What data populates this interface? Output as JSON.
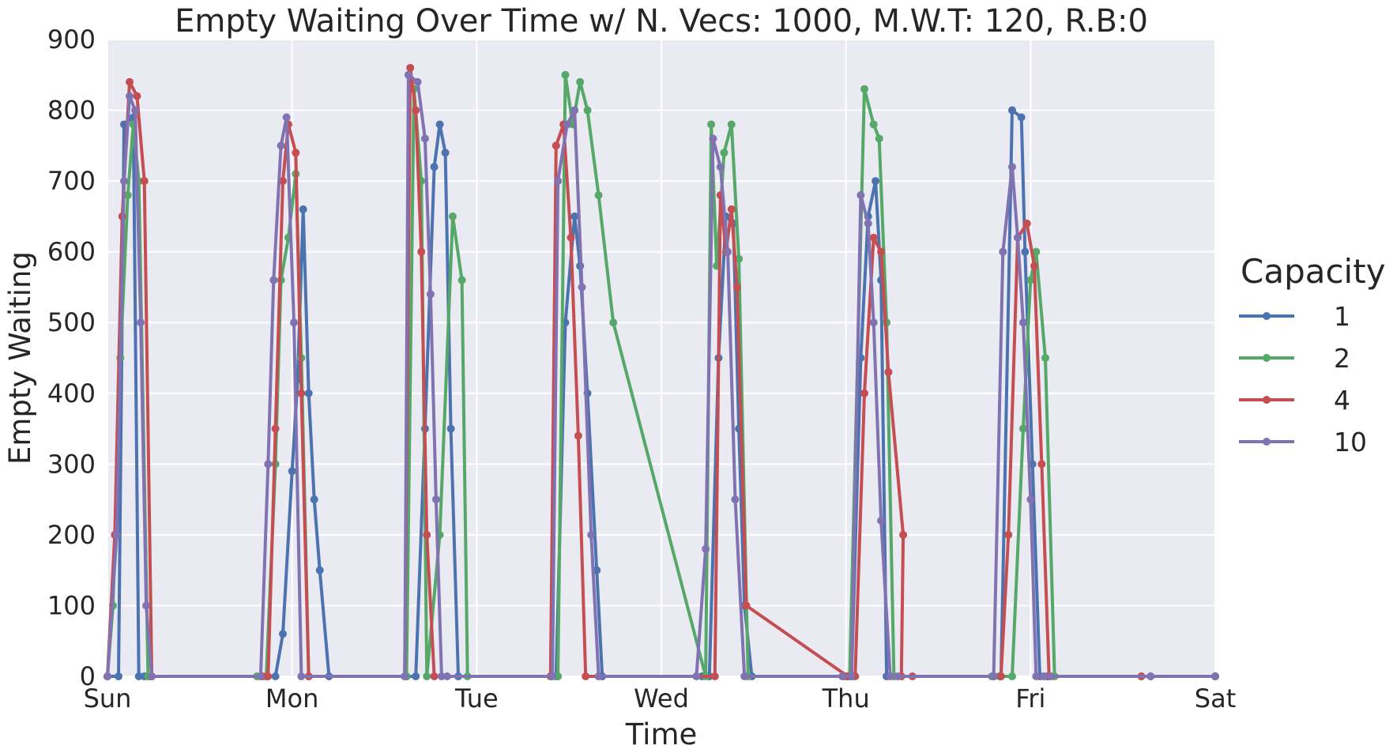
{
  "chart_data": {
    "type": "line",
    "title": "Empty Waiting Over Time w/ N. Vecs: 1000, M.W.T: 120, R.B:0",
    "xlabel": "Time",
    "ylabel": "Empty Waiting",
    "x_ticks": [
      "Sun",
      "Mon",
      "Tue",
      "Wed",
      "Thu",
      "Fri",
      "Sat"
    ],
    "xlim": [
      0,
      6
    ],
    "ylim": [
      0,
      900
    ],
    "y_ticks": [
      0,
      100,
      200,
      300,
      400,
      500,
      600,
      700,
      800,
      900
    ],
    "grid": true,
    "legend": {
      "title": "Capacity",
      "placement": "right"
    },
    "series": [
      {
        "name": "1",
        "color": "#4c72b0",
        "x": [
          0,
          0.06,
          0.09,
          0.14,
          0.17,
          0.2,
          0.23,
          0.86,
          0.91,
          0.95,
          1.0,
          1.03,
          1.06,
          1.09,
          1.12,
          1.15,
          1.2,
          1.62,
          1.67,
          1.72,
          1.77,
          1.8,
          1.83,
          1.86,
          1.9,
          2.4,
          2.43,
          2.48,
          2.53,
          2.56,
          2.6,
          2.65,
          2.68,
          3.22,
          3.26,
          3.31,
          3.35,
          3.39,
          3.42,
          3.45,
          3.49,
          3.99,
          4.03,
          4.08,
          4.12,
          4.16,
          4.19,
          4.22,
          4.8,
          4.84,
          4.9,
          4.95,
          4.97,
          5.01,
          5.05,
          5.09,
          5.65,
          6.0
        ],
        "values": [
          0,
          0,
          780,
          790,
          0,
          0,
          0,
          0,
          0,
          60,
          290,
          420,
          660,
          400,
          250,
          150,
          0,
          0,
          0,
          350,
          720,
          780,
          740,
          350,
          0,
          0,
          0,
          500,
          650,
          580,
          400,
          150,
          0,
          0,
          0,
          450,
          650,
          640,
          350,
          100,
          0,
          0,
          0,
          450,
          650,
          700,
          560,
          0,
          0,
          0,
          800,
          790,
          600,
          300,
          0,
          0,
          0,
          0
        ]
      },
      {
        "name": "2",
        "color": "#55a868",
        "x": [
          0,
          0.03,
          0.07,
          0.11,
          0.14,
          0.17,
          0.22,
          0.81,
          0.86,
          0.91,
          0.94,
          0.98,
          1.02,
          1.05,
          1.09,
          1.62,
          1.66,
          1.7,
          1.73,
          1.8,
          1.87,
          1.92,
          1.95,
          2.44,
          2.48,
          2.52,
          2.56,
          2.6,
          2.66,
          2.74,
          3.24,
          3.27,
          3.3,
          3.34,
          3.38,
          3.42,
          3.47,
          4.0,
          4.02,
          4.1,
          4.15,
          4.18,
          4.22,
          4.26,
          4.79,
          4.83,
          4.9,
          4.96,
          5.0,
          5.03,
          5.08,
          5.13,
          5.6,
          6.0
        ],
        "values": [
          0,
          100,
          450,
          680,
          780,
          700,
          0,
          0,
          0,
          300,
          560,
          620,
          710,
          450,
          0,
          0,
          830,
          700,
          0,
          200,
          650,
          560,
          0,
          0,
          850,
          780,
          840,
          800,
          680,
          500,
          0,
          780,
          580,
          740,
          780,
          590,
          0,
          0,
          0,
          830,
          780,
          760,
          500,
          0,
          0,
          0,
          0,
          350,
          560,
          600,
          450,
          0,
          0,
          0
        ]
      },
      {
        "name": "4",
        "color": "#c44e52",
        "x": [
          0,
          0.04,
          0.08,
          0.12,
          0.16,
          0.2,
          0.24,
          0.84,
          0.87,
          0.91,
          0.95,
          0.98,
          1.02,
          1.05,
          1.09,
          1.61,
          1.64,
          1.67,
          1.7,
          1.73,
          1.77,
          2.4,
          2.43,
          2.47,
          2.51,
          2.55,
          2.59,
          3.29,
          3.32,
          3.35,
          3.38,
          3.41,
          3.46,
          4.01,
          4.05,
          4.1,
          4.15,
          4.19,
          4.23,
          4.31,
          4.3,
          4.36,
          4.8,
          4.84,
          4.88,
          4.93,
          4.98,
          5.02,
          5.06,
          5.1,
          5.6,
          6.0
        ],
        "values": [
          0,
          200,
          650,
          840,
          820,
          700,
          0,
          0,
          0,
          350,
          700,
          780,
          740,
          400,
          0,
          0,
          860,
          800,
          600,
          200,
          0,
          0,
          750,
          780,
          620,
          340,
          0,
          0,
          680,
          600,
          660,
          550,
          100,
          0,
          0,
          400,
          620,
          600,
          430,
          200,
          0,
          0,
          0,
          0,
          200,
          620,
          640,
          580,
          300,
          0,
          0,
          0
        ]
      },
      {
        "name": "10",
        "color": "#8172b2",
        "x": [
          0,
          0.05,
          0.09,
          0.12,
          0.15,
          0.18,
          0.21,
          0.24,
          0.83,
          0.87,
          0.9,
          0.94,
          0.97,
          1.01,
          1.05,
          1.61,
          1.63,
          1.68,
          1.72,
          1.75,
          1.78,
          1.81,
          1.84,
          2.41,
          2.44,
          2.49,
          2.53,
          2.57,
          2.62,
          2.66,
          3.19,
          3.24,
          3.28,
          3.32,
          3.36,
          3.4,
          3.45,
          3.98,
          4.03,
          4.08,
          4.12,
          4.15,
          4.19,
          4.24,
          4.28,
          4.8,
          4.85,
          4.9,
          4.93,
          4.96,
          5.0,
          5.03,
          5.07,
          5.11,
          5.65,
          6.0
        ],
        "values": [
          0,
          200,
          700,
          820,
          800,
          500,
          100,
          0,
          0,
          300,
          560,
          750,
          790,
          500,
          0,
          0,
          850,
          840,
          760,
          540,
          250,
          0,
          0,
          0,
          700,
          780,
          800,
          550,
          200,
          0,
          0,
          180,
          760,
          720,
          600,
          250,
          0,
          0,
          0,
          680,
          640,
          500,
          220,
          0,
          0,
          0,
          600,
          720,
          620,
          500,
          250,
          0,
          0,
          0,
          0,
          0
        ]
      }
    ]
  }
}
